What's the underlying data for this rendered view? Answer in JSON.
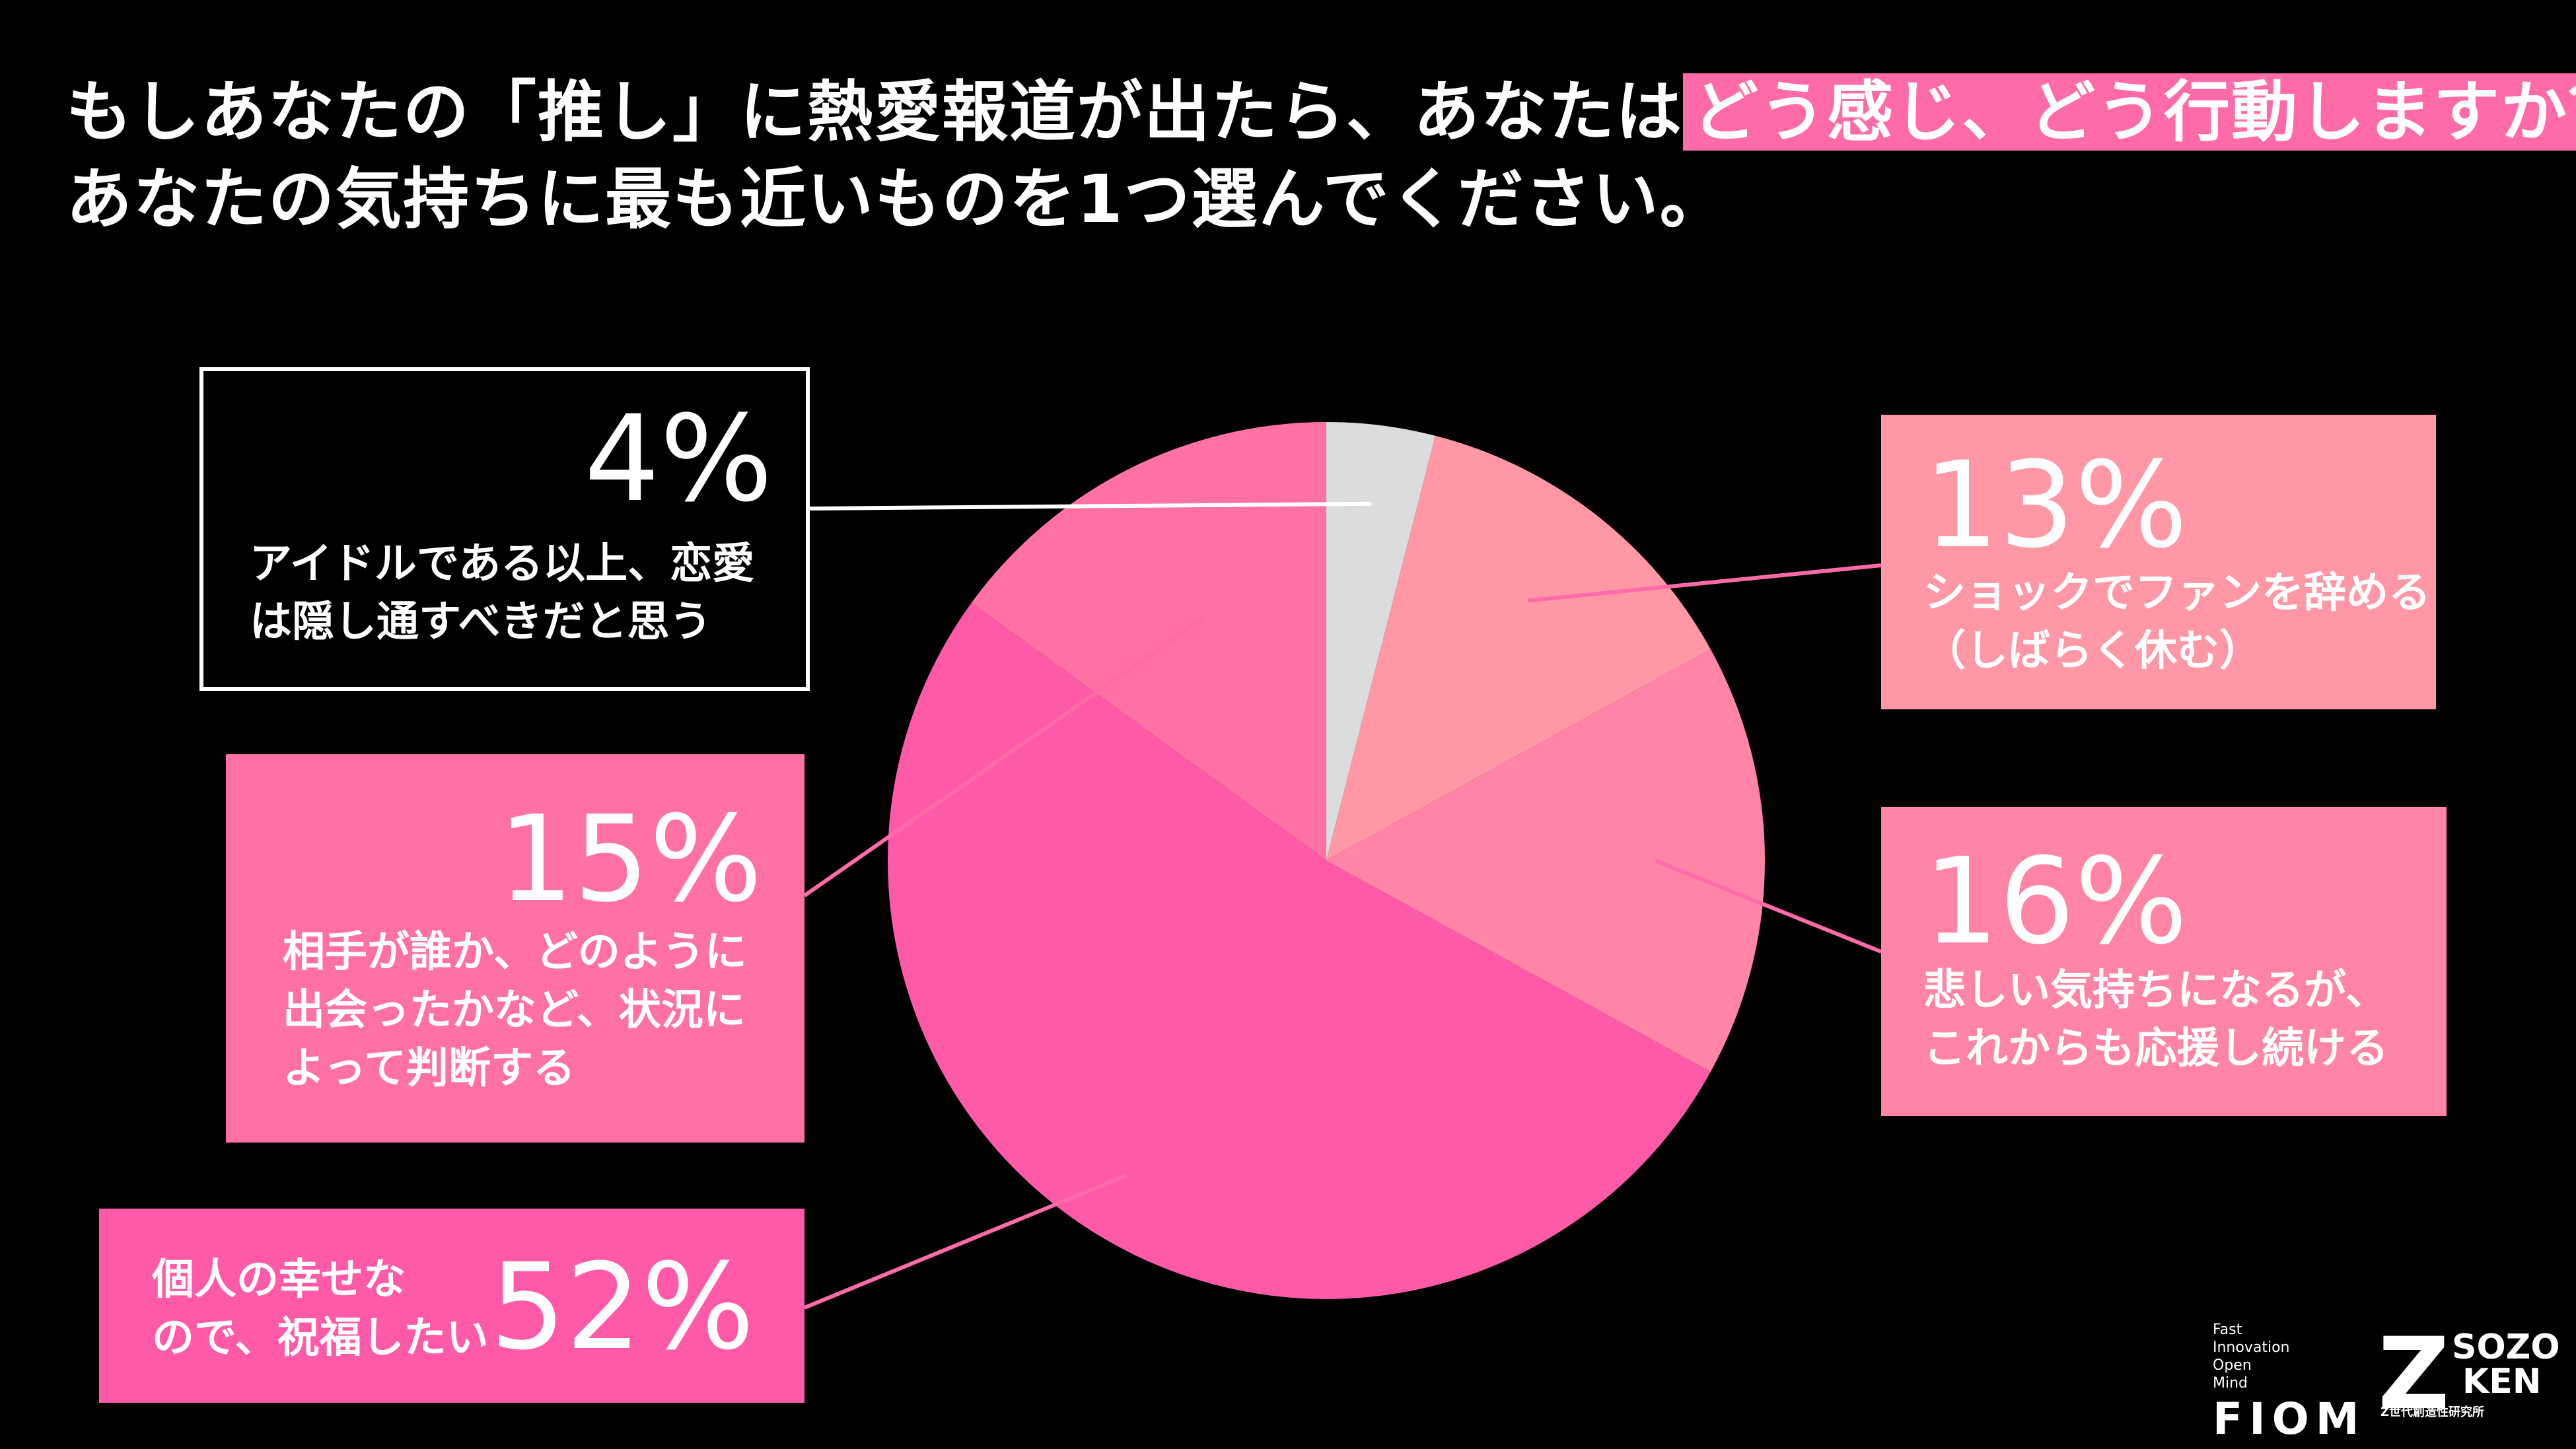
{
  "title": {
    "line1_before": "もしあなたの「推し」に熱愛報道が出たら、あなたは",
    "line1_highlight": "どう感じ、どう行動しますか？",
    "line2": "あなたの気持ちに最も近いものを1つ選んでください。"
  },
  "chart_data": {
    "type": "pie",
    "title": "",
    "slices": [
      {
        "label_lines": [
          "アイドルである以上、恋愛",
          "は隠し通すべきだと思う"
        ],
        "value": 4,
        "percent_label": "4%",
        "color": "#dcdcdc"
      },
      {
        "label_lines": [
          "ショックでファンを辞める",
          "（しばらく休む）"
        ],
        "value": 13,
        "percent_label": "13%",
        "color": "#ff97a6"
      },
      {
        "label_lines": [
          "悲しい気持ちになるが、",
          "これからも応援し続ける"
        ],
        "value": 16,
        "percent_label": "16%",
        "color": "#ff84a8"
      },
      {
        "label_lines": [
          "個人の幸せな",
          "ので、祝福したい"
        ],
        "value": 52,
        "percent_label": "52%",
        "color": "#ff5aa7"
      },
      {
        "label_lines": [
          "相手が誰か、どのように",
          "出会ったかなど、状況に",
          "よって判断する"
        ],
        "value": 15,
        "percent_label": "15%",
        "color": "#ff71a5"
      }
    ],
    "start": "12 o'clock",
    "direction": "clockwise",
    "connector_color": "#ff6aa8"
  },
  "logos": {
    "fiom": {
      "lines": [
        "Fast",
        "Innovation",
        "Open",
        "Mind"
      ],
      "word": "FIOM"
    },
    "sozoken": {
      "mark": "Z",
      "top": "SOZO",
      "bottom": "KEN",
      "sub": "Z世代創造性研究所"
    }
  }
}
